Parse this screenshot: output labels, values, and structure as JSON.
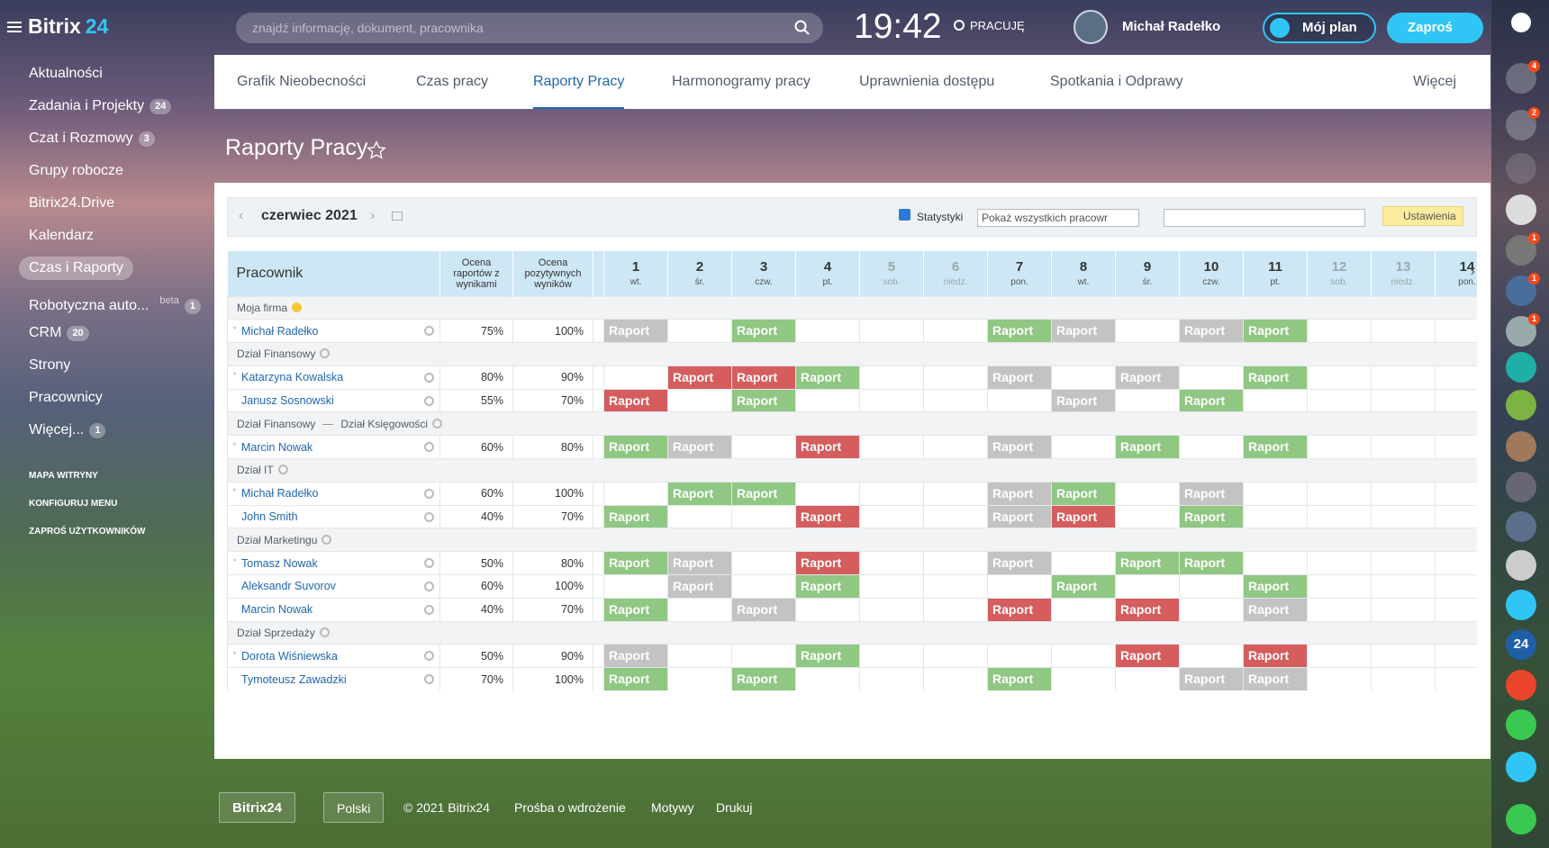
{
  "topbar": {
    "logo_a": "Bitrix",
    "logo_b": "24",
    "search": "znajdź informację, dokument, pracownika",
    "time": "19:42",
    "status": "PRACUJĘ",
    "user": "Michał Radełko",
    "plan": "Mój plan",
    "invite": "Zaproś"
  },
  "sidebar": {
    "items": [
      {
        "label": "Aktualności"
      },
      {
        "label": "Zadania i Projekty",
        "counter": "24"
      },
      {
        "label": "Czat i Rozmowy",
        "counter": "3"
      },
      {
        "label": "Grupy robocze"
      },
      {
        "label": "Bitrix24.Drive"
      },
      {
        "label": "Kalendarz"
      },
      {
        "label": "Czas i Raporty",
        "active": true
      },
      {
        "label": "Robotyczna auto...",
        "tag": "beta",
        "counter": "1"
      },
      {
        "label": "CRM",
        "counter": "20"
      },
      {
        "label": "Strony"
      },
      {
        "label": "Pracownicy"
      },
      {
        "label": "Więcej...",
        "counter": "1"
      }
    ],
    "links": [
      "MAPA WITRYNY",
      "KONFIGURUJ MENU",
      "ZAPROŚ UŻYTKOWNIKÓW"
    ]
  },
  "rightbar": {
    "bell": "4",
    "chat": "2",
    "u1": "1",
    "u2": "1",
    "u3": "1",
    "b24": "24"
  },
  "tabs": {
    "items": [
      "Grafik Nieobecności",
      "Czas pracy",
      "Raporty Pracy",
      "Harmonogramy pracy",
      "Uprawnienia dostępu",
      "Spotkania i Odprawy"
    ],
    "active": 2,
    "more": "Więcej"
  },
  "page_title": "Raporty Pracy",
  "toolbar": {
    "month": "czerwiec 2021",
    "stats": "Statystyki",
    "filter": "Pokaż wszystkich pracowr",
    "filter2": "",
    "settings": "Ustawienia"
  },
  "table": {
    "columns": {
      "employee": "Pracownik",
      "score_reports": "Ocena raportów z wynikami",
      "score_positive": "Ocena pozytywnych wyników"
    },
    "report_label": "Raport",
    "days": [
      {
        "n": "1",
        "d": "wt."
      },
      {
        "n": "2",
        "d": "śr."
      },
      {
        "n": "3",
        "d": "czw."
      },
      {
        "n": "4",
        "d": "pt."
      },
      {
        "n": "5",
        "d": "sob.",
        "weekend": true
      },
      {
        "n": "6",
        "d": "niedz.",
        "weekend": true
      },
      {
        "n": "7",
        "d": "pon."
      },
      {
        "n": "8",
        "d": "wt."
      },
      {
        "n": "9",
        "d": "śr."
      },
      {
        "n": "10",
        "d": "czw."
      },
      {
        "n": "11",
        "d": "pt."
      },
      {
        "n": "12",
        "d": "sob.",
        "weekend": true
      },
      {
        "n": "13",
        "d": "niedz.",
        "weekend": true
      },
      {
        "n": "14",
        "d": "pon."
      }
    ],
    "groups": [
      {
        "path": [
          "Moja firma"
        ],
        "rows": [
          {
            "name": "Michał Radełko",
            "s1": "75%",
            "s2": "100%",
            "head": true,
            "cells": [
              "x",
              null,
              "g",
              null,
              null,
              null,
              "g",
              "x",
              null,
              "x",
              "g",
              null,
              null,
              null
            ]
          }
        ]
      },
      {
        "path": [
          "Dział Finansowy"
        ],
        "rows": [
          {
            "name": "Katarzyna Kowalska",
            "s1": "80%",
            "s2": "90%",
            "head": true,
            "cells": [
              null,
              "r",
              "r",
              "g",
              null,
              null,
              "x",
              null,
              "x",
              null,
              "g",
              null,
              null,
              null
            ]
          },
          {
            "name": "Janusz Sosnowski",
            "s1": "55%",
            "s2": "70%",
            "cells": [
              "r",
              null,
              "g",
              null,
              null,
              null,
              null,
              "x",
              null,
              "g",
              null,
              null,
              null,
              null
            ]
          }
        ]
      },
      {
        "path": [
          "Dział Finansowy",
          "Dział Księgowości"
        ],
        "rows": [
          {
            "name": "Marcin Nowak",
            "s1": "60%",
            "s2": "80%",
            "head": true,
            "cells": [
              "g",
              "x",
              null,
              "r",
              null,
              null,
              "x",
              null,
              "g",
              null,
              "g",
              null,
              null,
              null
            ]
          }
        ]
      },
      {
        "path": [
          "Dział IT"
        ],
        "rows": [
          {
            "name": "Michał Radełko",
            "s1": "60%",
            "s2": "100%",
            "head": true,
            "cells": [
              null,
              "g",
              "g",
              null,
              null,
              null,
              "x",
              "g",
              null,
              "x",
              null,
              null,
              null,
              null
            ]
          },
          {
            "name": "John Smith",
            "s1": "40%",
            "s2": "70%",
            "cells": [
              "g",
              null,
              null,
              "r",
              null,
              null,
              "x",
              "r",
              null,
              "g",
              null,
              null,
              null,
              null
            ]
          }
        ]
      },
      {
        "path": [
          "Dział Marketingu"
        ],
        "rows": [
          {
            "name": "Tomasz Nowak",
            "s1": "50%",
            "s2": "80%",
            "head": true,
            "cells": [
              "g",
              "x",
              null,
              "r",
              null,
              null,
              "x",
              null,
              "g",
              "g",
              null,
              null,
              null,
              null
            ]
          },
          {
            "name": "Aleksandr Suvorov",
            "s1": "60%",
            "s2": "100%",
            "cells": [
              null,
              "x",
              null,
              "g",
              null,
              null,
              null,
              "g",
              null,
              null,
              "g",
              null,
              null,
              null
            ]
          },
          {
            "name": "Marcin Nowak",
            "s1": "40%",
            "s2": "70%",
            "cells": [
              "g",
              null,
              "x",
              null,
              null,
              null,
              "r",
              null,
              "r",
              null,
              "x",
              null,
              null,
              null
            ]
          }
        ]
      },
      {
        "path": [
          "Dział Sprzedaży"
        ],
        "rows": [
          {
            "name": "Dorota Wiśniewska",
            "s1": "50%",
            "s2": "90%",
            "head": true,
            "cells": [
              "x",
              null,
              null,
              "g",
              null,
              null,
              null,
              null,
              "r",
              null,
              "r",
              null,
              null,
              null
            ]
          },
          {
            "name": "Tymoteusz Zawadzki",
            "s1": "70%",
            "s2": "100%",
            "cells": [
              "g",
              null,
              "g",
              null,
              null,
              null,
              "g",
              null,
              null,
              "x",
              "x",
              null,
              null,
              null
            ]
          }
        ]
      }
    ]
  },
  "footer": {
    "logo": "Bitrix24",
    "lang": "Polski",
    "copy": "© 2021 Bitrix24",
    "links": [
      "Prośba o wdrożenie",
      "Motywy",
      "Drukuj"
    ]
  }
}
